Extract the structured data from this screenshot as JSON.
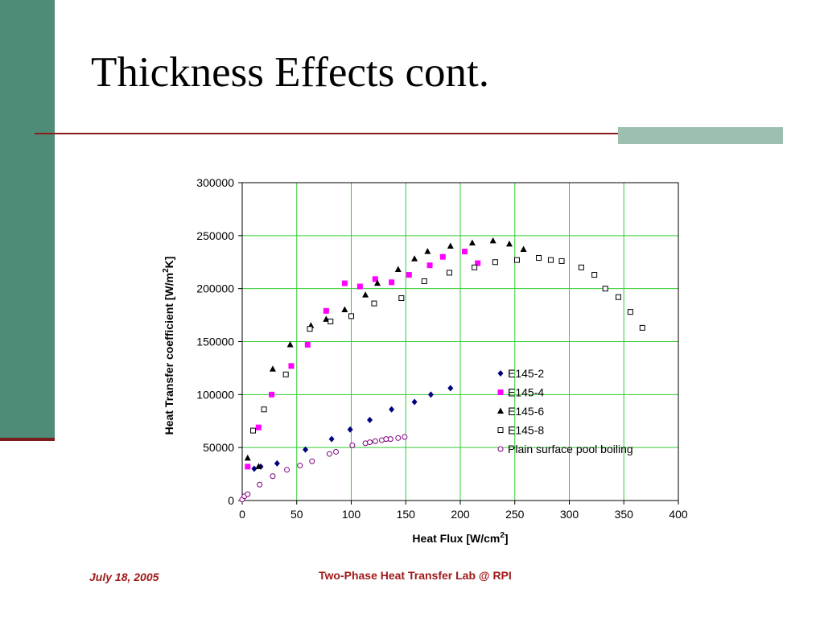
{
  "slide": {
    "title": "Thickness Effects cont.",
    "footer_date": "July 18, 2005",
    "footer_lab": "Two-Phase Heat Transfer Lab @ RPI"
  },
  "colors": {
    "sidebar": "#4e8c78",
    "rule": "#8b1a1a",
    "accent_box": "#9cbfb0",
    "footer_text": "#a01a1a",
    "grid": "#33cc33"
  },
  "chart_data": {
    "type": "scatter",
    "title": "",
    "xlabel": "Heat Flux [W/cm",
    "xlabel_sup": "2",
    "xlabel_end": "]",
    "ylabel": "Heat Transfer coefficient [W/m",
    "ylabel_sup": "2",
    "ylabel_end": "K]",
    "xlim": [
      0,
      400
    ],
    "ylim": [
      0,
      300000
    ],
    "x_ticks": [
      "0",
      "50",
      "100",
      "150",
      "200",
      "250",
      "300",
      "350",
      "400"
    ],
    "y_ticks": [
      "0",
      "50000",
      "100000",
      "150000",
      "200000",
      "250000",
      "300000"
    ],
    "grid": true,
    "legend_position": "lower-right",
    "series": [
      {
        "name": "E145-2",
        "marker": "diamond",
        "color": "#00007f",
        "points": [
          [
            11,
            30000
          ],
          [
            17,
            32000
          ],
          [
            32,
            35000
          ],
          [
            58,
            48000
          ],
          [
            82,
            58000
          ],
          [
            99,
            67000
          ],
          [
            117,
            76000
          ],
          [
            137,
            86000
          ],
          [
            158,
            93000
          ],
          [
            173,
            100000
          ],
          [
            191,
            106000
          ]
        ]
      },
      {
        "name": "E145-4",
        "marker": "square",
        "color": "#ff00ff",
        "points": [
          [
            5,
            32000
          ],
          [
            15,
            69000
          ],
          [
            27,
            100000
          ],
          [
            45,
            127000
          ],
          [
            60,
            147000
          ],
          [
            77,
            179000
          ],
          [
            94,
            205000
          ],
          [
            108,
            202000
          ],
          [
            122,
            209000
          ],
          [
            137,
            206000
          ],
          [
            153,
            213000
          ],
          [
            172,
            222000
          ],
          [
            184,
            230000
          ],
          [
            204,
            235000
          ],
          [
            216,
            224000
          ]
        ]
      },
      {
        "name": "E145-6",
        "marker": "triangle",
        "color": "#000000",
        "points": [
          [
            5,
            40000
          ],
          [
            15,
            32000
          ],
          [
            28,
            124000
          ],
          [
            44,
            147000
          ],
          [
            63,
            165000
          ],
          [
            77,
            171000
          ],
          [
            94,
            180000
          ],
          [
            113,
            194000
          ],
          [
            124,
            205000
          ],
          [
            143,
            218000
          ],
          [
            158,
            228000
          ],
          [
            170,
            235000
          ],
          [
            191,
            240000
          ],
          [
            211,
            243000
          ],
          [
            230,
            245000
          ],
          [
            245,
            242000
          ],
          [
            258,
            237000
          ]
        ]
      },
      {
        "name": "E145-8",
        "marker": "open-square",
        "color": "#000000",
        "points": [
          [
            10,
            66000
          ],
          [
            20,
            86000
          ],
          [
            40,
            119000
          ],
          [
            62,
            162000
          ],
          [
            81,
            169000
          ],
          [
            100,
            174000
          ],
          [
            121,
            186000
          ],
          [
            146,
            191000
          ],
          [
            167,
            207000
          ],
          [
            190,
            215000
          ],
          [
            213,
            220000
          ],
          [
            232,
            225000
          ],
          [
            252,
            227000
          ],
          [
            272,
            229000
          ],
          [
            283,
            227000
          ],
          [
            293,
            226000
          ],
          [
            311,
            220000
          ],
          [
            323,
            213000
          ],
          [
            333,
            200000
          ],
          [
            345,
            192000
          ],
          [
            356,
            178000
          ],
          [
            367,
            163000
          ]
        ]
      },
      {
        "name": "Plain surface pool boiling",
        "marker": "open-circle",
        "color": "#7f007f",
        "points": [
          [
            0,
            1000
          ],
          [
            2,
            4000
          ],
          [
            5,
            6000
          ],
          [
            16,
            15000
          ],
          [
            28,
            23000
          ],
          [
            41,
            29000
          ],
          [
            53,
            33000
          ],
          [
            64,
            37000
          ],
          [
            80,
            44000
          ],
          [
            86,
            46000
          ],
          [
            101,
            52000
          ],
          [
            113,
            54000
          ],
          [
            117,
            55000
          ],
          [
            122,
            56000
          ],
          [
            128,
            57000
          ],
          [
            132,
            58000
          ],
          [
            136,
            58000
          ],
          [
            143,
            59000
          ],
          [
            149,
            60000
          ]
        ]
      }
    ]
  }
}
